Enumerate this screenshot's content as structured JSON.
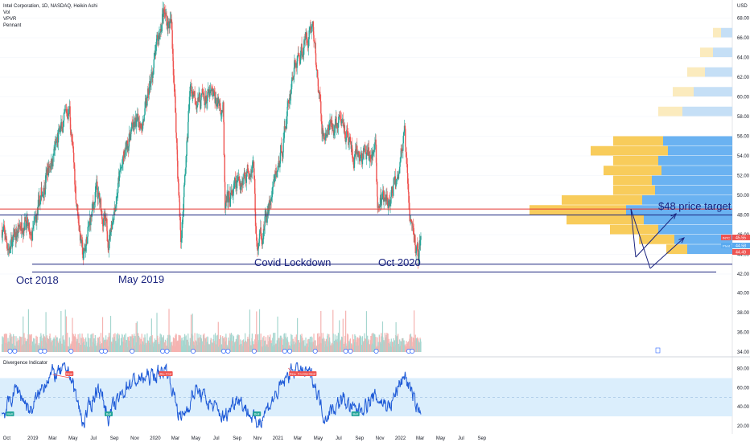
{
  "legend": {
    "main": "Intel Corporation, 1D, NASDAQ, Heikin Ashi",
    "lines": [
      "Vol",
      "VPVR",
      "Pennant"
    ],
    "indicator": "Divergence Indicator"
  },
  "currency": "USD",
  "colors": {
    "up": "#26a69a",
    "down": "#ef5350",
    "red_line": "#e53935",
    "navy": "#1a237e",
    "vp_blue": "#5aaaf0",
    "vp_light_blue": "#bfdcf5",
    "vp_yellow": "#f7c649",
    "vp_light_yellow": "#fbe9b7",
    "rsi_line": "#1e5ad7",
    "rsi_band": "#dbeefc",
    "bear_label": "#ef5350",
    "bull_label": "#26a69a"
  },
  "chart_data": {
    "type": "candlestick",
    "y_axis_price": [
      42,
      44,
      46,
      48,
      50,
      52,
      54,
      56,
      58,
      60,
      62,
      64,
      66,
      68
    ],
    "y_axis_volume": [
      34,
      36,
      38,
      40
    ],
    "y_axis_rsi": [
      20,
      40,
      60,
      80
    ],
    "x_axis_labels": [
      "Oct",
      "2019",
      "Mar",
      "May",
      "Jul",
      "Sep",
      "Nov",
      "2020",
      "Mar",
      "May",
      "Jul",
      "Sep",
      "Nov",
      "2021",
      "Mar",
      "May",
      "Jul",
      "Sep",
      "Nov",
      "2022",
      "Mar",
      "May",
      "Jul",
      "Sep"
    ],
    "price_path": [
      {
        "date": "2018-10-01",
        "price": 46.5
      },
      {
        "date": "2018-10-25",
        "price": 44.5
      },
      {
        "date": "2018-12-10",
        "price": 48.0
      },
      {
        "date": "2018-12-26",
        "price": 45.0
      },
      {
        "date": "2019-02-10",
        "price": 52.0
      },
      {
        "date": "2019-04-20",
        "price": 59.0
      },
      {
        "date": "2019-05-10",
        "price": 50.0
      },
      {
        "date": "2019-05-31",
        "price": 43.5
      },
      {
        "date": "2019-07-10",
        "price": 50.5
      },
      {
        "date": "2019-08-15",
        "price": 45.5
      },
      {
        "date": "2019-09-15",
        "price": 51.5
      },
      {
        "date": "2019-10-20",
        "price": 56.5
      },
      {
        "date": "2019-12-01",
        "price": 58.0
      },
      {
        "date": "2020-01-24",
        "price": 68.5
      },
      {
        "date": "2020-02-20",
        "price": 67.0
      },
      {
        "date": "2020-03-18",
        "price": 45.0
      },
      {
        "date": "2020-04-15",
        "price": 61.0
      },
      {
        "date": "2020-05-15",
        "price": 59.5
      },
      {
        "date": "2020-06-15",
        "price": 60.0
      },
      {
        "date": "2020-07-22",
        "price": 59.0
      },
      {
        "date": "2020-07-27",
        "price": 48.5
      },
      {
        "date": "2020-09-01",
        "price": 51.0
      },
      {
        "date": "2020-10-20",
        "price": 53.5
      },
      {
        "date": "2020-10-30",
        "price": 44.5
      },
      {
        "date": "2020-12-01",
        "price": 48.0
      },
      {
        "date": "2021-01-10",
        "price": 54.0
      },
      {
        "date": "2021-02-15",
        "price": 62.5
      },
      {
        "date": "2021-04-14",
        "price": 67.5
      },
      {
        "date": "2021-05-15",
        "price": 56.0
      },
      {
        "date": "2021-07-15",
        "price": 57.5
      },
      {
        "date": "2021-08-15",
        "price": 53.5
      },
      {
        "date": "2021-10-20",
        "price": 54.5
      },
      {
        "date": "2021-10-25",
        "price": 49.5
      },
      {
        "date": "2021-12-01",
        "price": 49.0
      },
      {
        "date": "2022-01-14",
        "price": 56.0
      },
      {
        "date": "2022-01-28",
        "price": 48.0
      },
      {
        "date": "2022-02-24",
        "price": 43.8
      },
      {
        "date": "2022-03-04",
        "price": 45.8
      }
    ],
    "rsi_path": [
      {
        "date": "2018-10-01",
        "value": 30
      },
      {
        "date": "2018-11-15",
        "value": 60
      },
      {
        "date": "2018-12-26",
        "value": 35
      },
      {
        "date": "2019-02-15",
        "value": 72
      },
      {
        "date": "2019-04-20",
        "value": 78
      },
      {
        "date": "2019-05-31",
        "value": 22
      },
      {
        "date": "2019-07-15",
        "value": 62
      },
      {
        "date": "2019-08-15",
        "value": 30
      },
      {
        "date": "2019-10-15",
        "value": 65
      },
      {
        "date": "2020-01-15",
        "value": 75
      },
      {
        "date": "2020-02-05",
        "value": 80
      },
      {
        "date": "2020-03-18",
        "value": 26
      },
      {
        "date": "2020-05-01",
        "value": 58
      },
      {
        "date": "2020-07-27",
        "value": 28
      },
      {
        "date": "2020-09-01",
        "value": 52
      },
      {
        "date": "2020-10-30",
        "value": 22
      },
      {
        "date": "2021-01-10",
        "value": 60
      },
      {
        "date": "2021-02-15",
        "value": 80
      },
      {
        "date": "2021-04-14",
        "value": 72
      },
      {
        "date": "2021-05-20",
        "value": 30
      },
      {
        "date": "2021-07-15",
        "value": 48
      },
      {
        "date": "2021-08-20",
        "value": 35
      },
      {
        "date": "2021-10-20",
        "value": 50
      },
      {
        "date": "2021-12-01",
        "value": 40
      },
      {
        "date": "2022-01-14",
        "value": 75
      },
      {
        "date": "2022-02-24",
        "value": 33
      },
      {
        "date": "2022-03-04",
        "value": 40
      }
    ],
    "horizontal_lines": [
      {
        "price": 48.6,
        "color": "red"
      },
      {
        "price": 48.0,
        "color": "navy"
      },
      {
        "price": 43.0,
        "color": "navy"
      },
      {
        "price": 42.2,
        "color": "navy"
      }
    ],
    "volume_profile": [
      {
        "price": 55.0,
        "blue": 86,
        "yellow": 62
      },
      {
        "price": 54.0,
        "blue": 80,
        "yellow": 96
      },
      {
        "price": 53.0,
        "blue": 92,
        "yellow": 56
      },
      {
        "price": 52.0,
        "blue": 88,
        "yellow": 72
      },
      {
        "price": 51.0,
        "blue": 100,
        "yellow": 48
      },
      {
        "price": 50.0,
        "blue": 96,
        "yellow": 52
      },
      {
        "price": 49.0,
        "blue": 112,
        "yellow": 100
      },
      {
        "price": 48.0,
        "blue": 132,
        "yellow": 120
      },
      {
        "price": 47.0,
        "blue": 110,
        "yellow": 96
      },
      {
        "price": 46.0,
        "blue": 92,
        "yellow": 60
      },
      {
        "price": 45.0,
        "blue": 72,
        "yellow": 44
      },
      {
        "price": 44.0,
        "blue": 56,
        "yellow": 26
      },
      {
        "price": 58.0,
        "blue": 62,
        "yellow": 30
      },
      {
        "price": 60.0,
        "blue": 48,
        "yellow": 26
      },
      {
        "price": 62.0,
        "blue": 34,
        "yellow": 22
      },
      {
        "price": 64.0,
        "blue": 24,
        "yellow": 16
      },
      {
        "price": 66.0,
        "blue": 14,
        "yellow": 10
      }
    ],
    "divergence_labels": [
      {
        "date": "2019-04-20",
        "type": "bear",
        "text": "Bear"
      },
      {
        "date": "2020-01-24",
        "type": "bear",
        "text": "Bear"
      },
      {
        "date": "2020-02-10",
        "type": "bear",
        "text": "Bear"
      },
      {
        "date": "2021-02-15",
        "type": "bear",
        "text": "Bear"
      },
      {
        "date": "2021-03-10",
        "type": "bear",
        "text": "Bear"
      },
      {
        "date": "2021-03-28",
        "type": "bear",
        "text": "Bear"
      },
      {
        "date": "2021-04-14",
        "type": "bear",
        "text": "Bear"
      },
      {
        "date": "2018-10-25",
        "type": "bull",
        "text": "Bull"
      },
      {
        "date": "2019-08-15",
        "type": "bull",
        "text": "Bull"
      },
      {
        "date": "2020-10-30",
        "type": "bull",
        "text": "Bull"
      },
      {
        "date": "2021-08-20",
        "type": "bull",
        "text": "Bull"
      }
    ],
    "earnings_markers": [
      "2018-10-25",
      "2018-11-08",
      "2019-01-24",
      "2019-02-05",
      "2019-04-25",
      "2019-07-25",
      "2019-08-05",
      "2019-10-24",
      "2020-01-23",
      "2020-02-05",
      "2020-04-23",
      "2020-07-23",
      "2020-08-05",
      "2020-10-22",
      "2021-01-21",
      "2021-02-05",
      "2021-04-22",
      "2021-07-22",
      "2021-08-05",
      "2021-10-21",
      "2022-01-26",
      "2022-02-05"
    ],
    "price_tags": [
      {
        "price": 45.55,
        "label": "INTC",
        "text": "45.55",
        "color": "#ef5350"
      },
      {
        "price": 44.58,
        "label": "Pivot",
        "text": "44.58",
        "color": "#5aaaf0"
      },
      {
        "price": 44.49,
        "text": "44.49",
        "color": "#ef5350"
      }
    ]
  },
  "annotations": {
    "target": "$48 price target",
    "covid": "Covid Lockdown",
    "oct2020": "Oct 2020",
    "oct2018": "Oct 2018",
    "may2019": "May 2019"
  }
}
